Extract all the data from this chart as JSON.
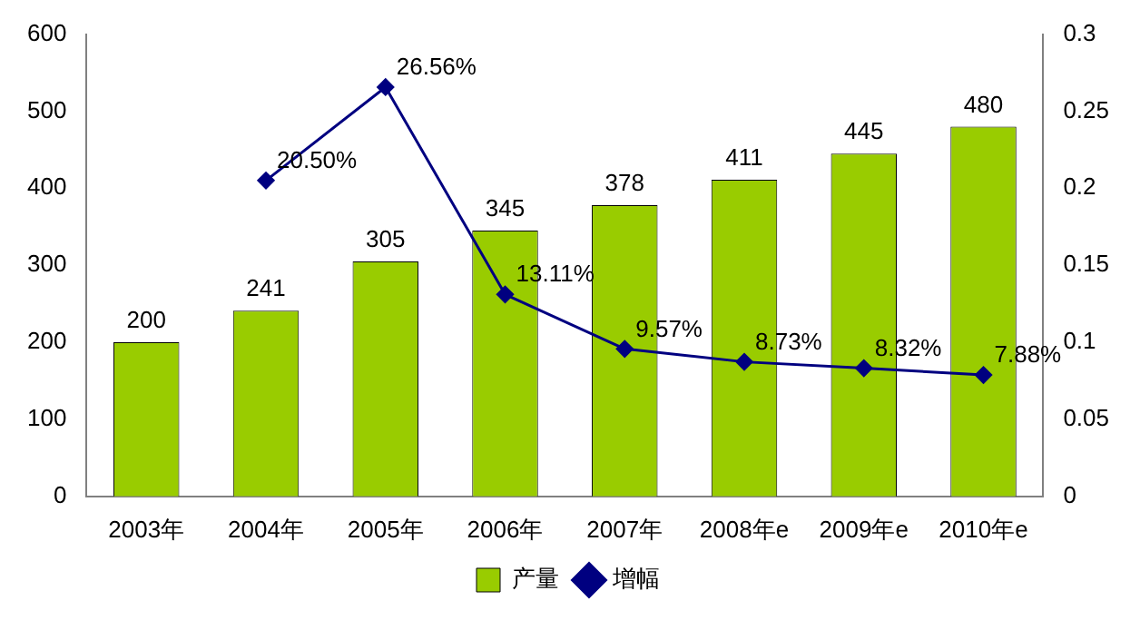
{
  "chart_data": {
    "type": "bar",
    "categories": [
      "2003年",
      "2004年",
      "2005年",
      "2006年",
      "2007年",
      "2008年e",
      "2009年e",
      "2010年e"
    ],
    "series": [
      {
        "name": "产量",
        "color": "#99cc00",
        "values": [
          200,
          241,
          305,
          345,
          378,
          411,
          445,
          480
        ],
        "value_labels": [
          "200",
          "241",
          "305",
          "345",
          "378",
          "411",
          "445",
          "480"
        ]
      },
      {
        "name": "增幅",
        "type": "line",
        "axis": "y2",
        "color": "#000080",
        "marker": "diamond",
        "values": [
          null,
          0.205,
          0.2656,
          0.1311,
          0.0957,
          0.0873,
          0.0832,
          0.0788
        ],
        "value_labels": [
          null,
          "20.50%",
          "26.56%",
          "13.11%",
          "9.57%",
          "8.73%",
          "8.32%",
          "7.88%"
        ]
      }
    ],
    "ylim": [
      0,
      600
    ],
    "yticks": [
      0,
      100,
      200,
      300,
      400,
      500,
      600
    ],
    "y2lim": [
      0,
      0.3
    ],
    "y2ticks": [
      0,
      0.05,
      0.1,
      0.15,
      0.2,
      0.25,
      0.3
    ],
    "grid": false,
    "legend": "bottom"
  }
}
